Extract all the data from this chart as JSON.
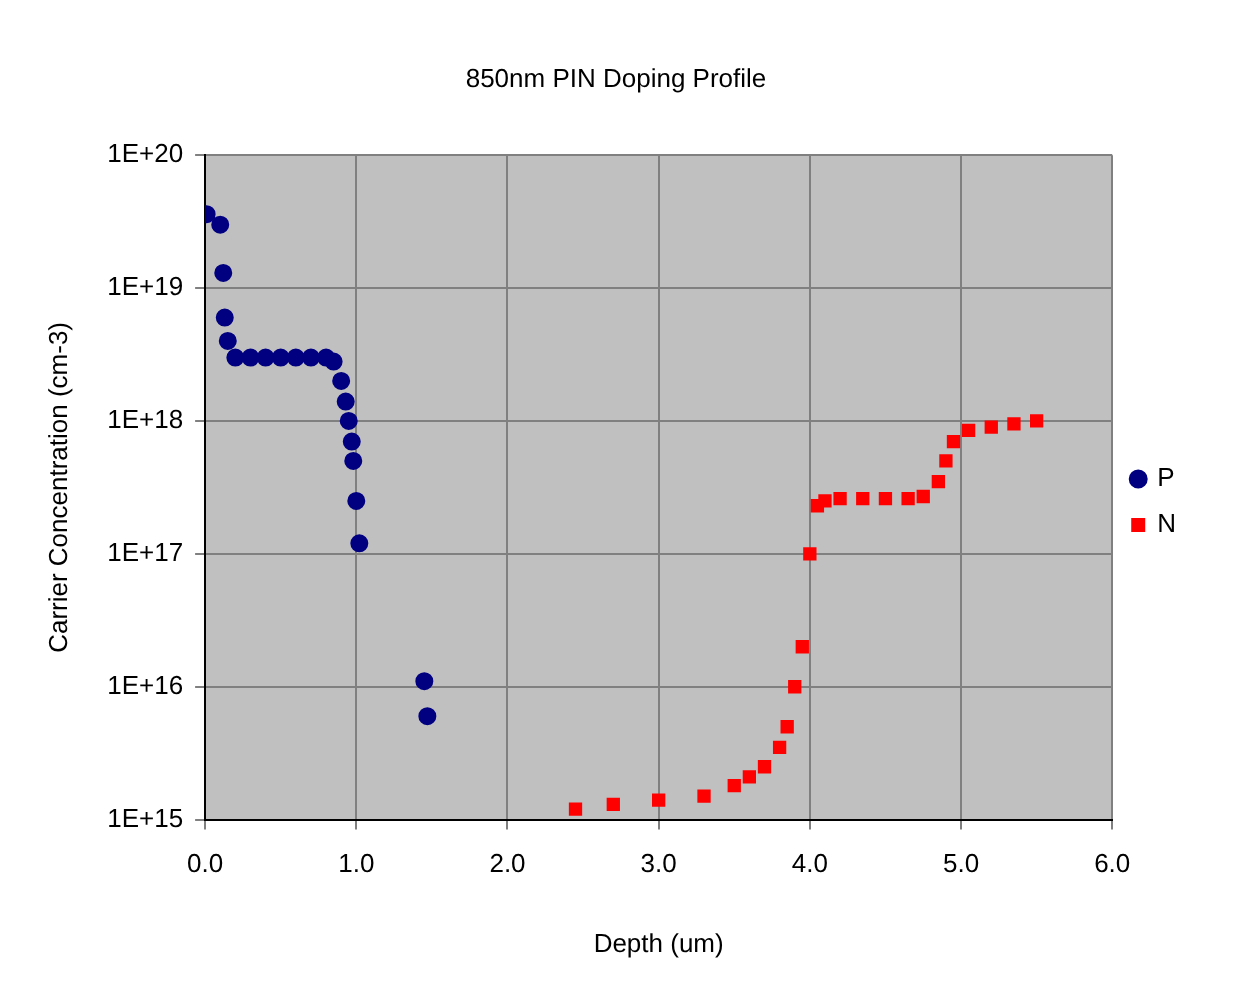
{
  "chart_data": {
    "type": "scatter",
    "title": "850nm PIN Doping Profile",
    "xlabel": "Depth (um)",
    "ylabel": "Carrier Concentration (cm-3)",
    "log": "y",
    "grid": true,
    "legend": "right",
    "xlim": [
      0,
      6
    ],
    "xticks": [
      {
        "value": 0,
        "label": "0.0"
      },
      {
        "value": 1,
        "label": "1.0"
      },
      {
        "value": 2,
        "label": "2.0"
      },
      {
        "value": 3,
        "label": "3.0"
      },
      {
        "value": 4,
        "label": "4.0"
      },
      {
        "value": 5,
        "label": "5.0"
      },
      {
        "value": 6,
        "label": "6.0"
      }
    ],
    "ylim": [
      1000000000000000.0,
      1e+20
    ],
    "yticks": [
      {
        "value": 1000000000000000.0,
        "label": "1E+15"
      },
      {
        "value": 1e+16,
        "label": "1E+16"
      },
      {
        "value": 1e+17,
        "label": "1E+17"
      },
      {
        "value": 1e+18,
        "label": "1E+18"
      },
      {
        "value": 1e+19,
        "label": "1E+19"
      },
      {
        "value": 1e+20,
        "label": "1E+20"
      }
    ],
    "series": [
      {
        "name": "P",
        "color": "#000080",
        "marker": "circle",
        "x": [
          0.01,
          0.1,
          0.12,
          0.13,
          0.15,
          0.2,
          0.3,
          0.4,
          0.5,
          0.6,
          0.7,
          0.8,
          0.85,
          0.9,
          0.93,
          0.95,
          0.97,
          0.98,
          1.0,
          1.02,
          1.45,
          1.47
        ],
        "values": [
          3.6e+19,
          3e+19,
          1.3e+19,
          6e+18,
          4e+18,
          3e+18,
          3e+18,
          3e+18,
          3e+18,
          3e+18,
          3e+18,
          3e+18,
          2.8e+18,
          2e+18,
          1.4e+18,
          1e+18,
          7e+17,
          5e+17,
          2.5e+17,
          1.2e+17,
          1.1e+16,
          6000000000000000.0
        ]
      },
      {
        "name": "N",
        "color": "#ff0000",
        "marker": "square",
        "x": [
          2.45,
          2.7,
          3.0,
          3.3,
          3.5,
          3.6,
          3.7,
          3.8,
          3.85,
          3.9,
          3.95,
          4.0,
          4.05,
          4.1,
          4.2,
          4.35,
          4.5,
          4.65,
          4.75,
          4.85,
          4.9,
          4.95,
          5.05,
          5.2,
          5.35,
          5.5
        ],
        "values": [
          1200000000000000.0,
          1300000000000000.0,
          1400000000000000.0,
          1500000000000000.0,
          1800000000000000.0,
          2100000000000000.0,
          2500000000000000.0,
          3500000000000000.0,
          5000000000000000.0,
          1e+16,
          2e+16,
          1e+17,
          2.3e+17,
          2.5e+17,
          2.6e+17,
          2.6e+17,
          2.6e+17,
          2.6e+17,
          2.7e+17,
          3.5e+17,
          5e+17,
          7e+17,
          8.5e+17,
          9e+17,
          9.5e+17,
          1e+18
        ]
      }
    ]
  }
}
